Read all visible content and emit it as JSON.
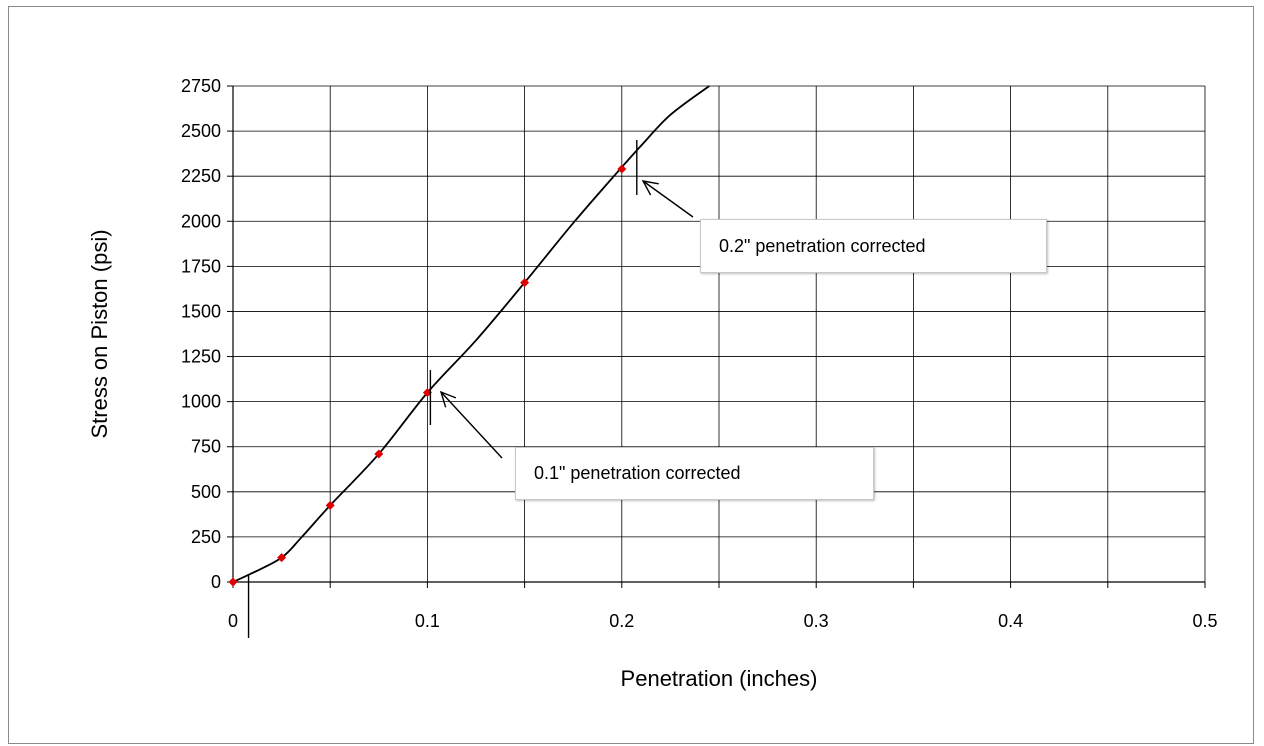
{
  "chart_data": {
    "type": "line",
    "title": "",
    "xlabel": "Penetration (inches)",
    "ylabel": "Stress on Piston (psi)",
    "xlim": [
      0,
      0.5
    ],
    "ylim": [
      0,
      2750
    ],
    "x_ticks": [
      "0",
      "0.1",
      "0.2",
      "0.3",
      "0.4",
      "0.5"
    ],
    "y_ticks": [
      "0",
      "250",
      "500",
      "750",
      "1000",
      "1250",
      "1500",
      "1750",
      "2000",
      "2250",
      "2500",
      "2750"
    ],
    "grid": true,
    "series": [
      {
        "type": "scatter",
        "color": "#e00000",
        "marker": "diamond",
        "x": [
          0,
          0.025,
          0.05,
          0.075,
          0.1,
          0.15,
          0.2
        ],
        "y": [
          0,
          135,
          425,
          710,
          1050,
          1660,
          2290
        ]
      },
      {
        "type": "curve",
        "color": "#000000",
        "x": [
          0,
          0.01,
          0.025,
          0.035,
          0.05,
          0.075,
          0.1,
          0.125,
          0.15,
          0.175,
          0.2,
          0.21,
          0.225,
          0.245
        ],
        "y": [
          0,
          50,
          135,
          245,
          425,
          710,
          1050,
          1340,
          1660,
          1990,
          2300,
          2420,
          2590,
          2750
        ]
      }
    ],
    "annotations": [
      {
        "text": "0.2\" penetration corrected",
        "x": 0.21,
        "y": 2250
      },
      {
        "text": "0.1\" penetration corrected",
        "x": 0.1,
        "y": 1050
      }
    ],
    "corrected_origin_x": 0.008
  }
}
